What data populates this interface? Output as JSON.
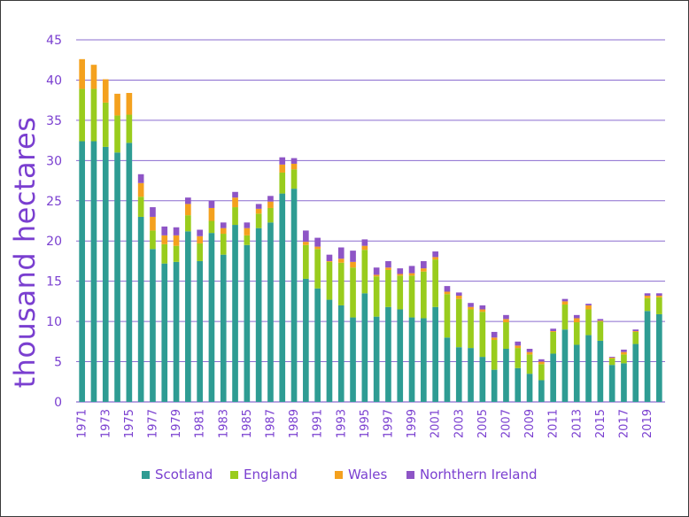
{
  "chart_data": {
    "type": "bar",
    "stacked": true,
    "title": "",
    "xlabel": "",
    "ylabel": "thousand hectares",
    "ylim": [
      0,
      45
    ],
    "yticks": [
      0,
      5,
      10,
      15,
      20,
      25,
      30,
      35,
      40,
      45
    ],
    "grid": true,
    "legend_position": "bottom",
    "categories": [
      "1971",
      "1972",
      "1973",
      "1974",
      "1975",
      "1976",
      "1977",
      "1978",
      "1979",
      "1980",
      "1981",
      "1982",
      "1983",
      "1984",
      "1985",
      "1986",
      "1987",
      "1988",
      "1989",
      "1990",
      "1991",
      "1992",
      "1993",
      "1994",
      "1995",
      "1996",
      "1997",
      "1998",
      "1999",
      "2000",
      "2001",
      "2002",
      "2003",
      "2004",
      "2005",
      "2006",
      "2007",
      "2008",
      "2009",
      "2010",
      "2011",
      "2012",
      "2013",
      "2014",
      "2015",
      "2016",
      "2017",
      "2018",
      "2019",
      "2020"
    ],
    "series": [
      {
        "name": "Scotland",
        "color": "#2e9c93",
        "values": [
          32.4,
          32.4,
          31.7,
          31.0,
          32.2,
          23.0,
          19.0,
          17.2,
          17.4,
          21.2,
          17.5,
          21.0,
          18.3,
          22.0,
          19.5,
          21.6,
          22.3,
          25.9,
          26.5,
          15.3,
          14.1,
          12.7,
          12.0,
          10.5,
          13.5,
          10.6,
          11.8,
          11.5,
          10.5,
          10.4,
          11.8,
          8.0,
          6.8,
          6.7,
          5.6,
          4.0,
          6.6,
          4.2,
          3.5,
          2.7,
          6.0,
          9.0,
          7.1,
          8.3,
          7.6,
          4.6,
          4.8,
          7.2,
          11.3,
          10.9
        ]
      },
      {
        "name": "England",
        "color": "#99cc1d",
        "values": [
          6.5,
          6.5,
          5.5,
          4.6,
          3.5,
          2.5,
          2.3,
          2.4,
          2.0,
          2.0,
          2.2,
          1.5,
          2.6,
          2.2,
          1.2,
          1.8,
          1.8,
          2.6,
          2.4,
          4.2,
          4.9,
          4.7,
          5.3,
          6.2,
          5.4,
          5.0,
          4.6,
          4.2,
          5.2,
          5.8,
          5.9,
          5.4,
          6.0,
          4.8,
          5.6,
          3.7,
          3.3,
          2.5,
          2.4,
          2.0,
          2.7,
          3.1,
          2.8,
          3.2,
          2.4,
          0.8,
          1.1,
          1.5,
          1.6,
          2.1
        ]
      },
      {
        "name": "Wales",
        "color": "#f4a11e",
        "values": [
          3.7,
          3.0,
          2.9,
          2.7,
          2.7,
          1.7,
          1.7,
          1.1,
          1.3,
          1.4,
          0.9,
          1.6,
          0.7,
          1.2,
          0.9,
          0.6,
          0.8,
          1.0,
          0.7,
          0.4,
          0.3,
          0.1,
          0.5,
          0.7,
          0.5,
          0.2,
          0.3,
          0.2,
          0.3,
          0.4,
          0.3,
          0.3,
          0.4,
          0.3,
          0.3,
          0.3,
          0.4,
          0.3,
          0.3,
          0.3,
          0.1,
          0.4,
          0.5,
          0.5,
          0.1,
          0.1,
          0.3,
          0.1,
          0.3,
          0.2
        ]
      },
      {
        "name": "Norhthern Ireland",
        "color": "#8e55c6",
        "values": [
          0,
          0,
          0,
          0,
          0,
          1.1,
          1.2,
          1.1,
          1.0,
          0.8,
          0.8,
          0.9,
          0.7,
          0.7,
          0.7,
          0.6,
          0.7,
          0.9,
          0.7,
          1.4,
          1.1,
          0.8,
          1.4,
          1.4,
          0.8,
          0.9,
          0.8,
          0.7,
          0.9,
          0.9,
          0.7,
          0.7,
          0.4,
          0.5,
          0.5,
          0.7,
          0.5,
          0.5,
          0.4,
          0.3,
          0.3,
          0.3,
          0.4,
          0.2,
          0.2,
          0.1,
          0.3,
          0.2,
          0.3,
          0.3
        ]
      }
    ]
  }
}
